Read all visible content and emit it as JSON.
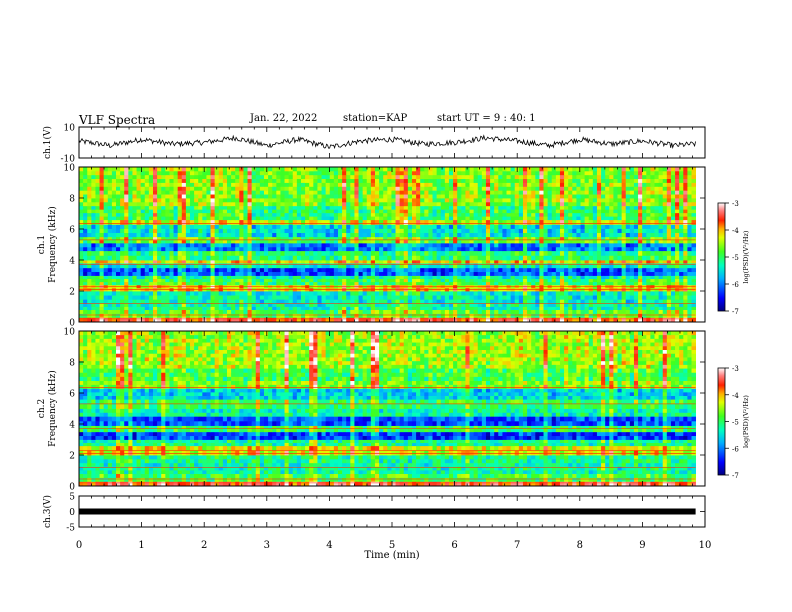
{
  "header": {
    "title": "VLF Spectra",
    "date": "Jan. 22, 2022",
    "station": "station=KAP",
    "start": "start UT =  9 : 40: 1"
  },
  "colors": {
    "spectrum_colormap": [
      "#00007f",
      "#0000ff",
      "#0080ff",
      "#00e0ff",
      "#00ff80",
      "#30ff30",
      "#c8ff00",
      "#ffff00",
      "#ffa000",
      "#ff2000",
      "#ff6060",
      "#ffd0d0",
      "#ffffff"
    ]
  },
  "chart_data": [
    {
      "type": "line",
      "name": "ch1-waveform",
      "ylabel": "ch.1(V)",
      "ylim": [
        -10,
        10
      ],
      "yticks": [
        "10",
        "-10"
      ],
      "xlim": [
        0,
        10
      ],
      "description_of_values": "noisy waveform hovering around 0 V, roughly -5 to +5 V",
      "x": [
        0,
        0.5,
        1,
        1.5,
        2,
        2.5,
        3,
        3.5,
        4,
        4.5,
        5,
        5.5,
        6,
        6.5,
        7,
        7.5,
        8,
        8.5,
        9,
        9.5,
        9.8
      ],
      "y": [
        1,
        -2,
        2,
        -1,
        0,
        3,
        -2,
        2,
        -3,
        1,
        2,
        -1,
        0,
        3,
        1,
        -2,
        2,
        -1,
        1,
        -2,
        -1
      ]
    },
    {
      "type": "heatmap",
      "name": "ch1-spectrogram",
      "ylabel": "ch.1\nFrequency (kHz)",
      "ylim": [
        0,
        10
      ],
      "yticks": [
        "0",
        "2",
        "4",
        "6",
        "8",
        "10"
      ],
      "xlim": [
        0,
        10
      ],
      "colorbar": {
        "label": "log(PSD)(V²/Hz)",
        "range": [
          -7,
          -3
        ],
        "ticks": [
          "-3",
          "-4",
          "-5",
          "-6",
          "-7"
        ]
      },
      "freq_bands_kHz": [
        0,
        0.3,
        0.8,
        1.2,
        2.0,
        2.4,
        2.8,
        3.0,
        3.5,
        3.8,
        4.0,
        4.6,
        5.1,
        5.5,
        6.3,
        6.6,
        7.5,
        10
      ],
      "band_log_psd": [
        -3.6,
        -4.8,
        -5.3,
        -5.4,
        -4.2,
        -5.0,
        -5.3,
        -6.2,
        -5.4,
        -4.2,
        -5.1,
        -6.0,
        -4.8,
        -5.5,
        -4.4,
        -5.0,
        -4.6,
        -4.4
      ]
    },
    {
      "type": "heatmap",
      "name": "ch2-spectrogram",
      "ylabel": "ch.2\nFrequency (kHz)",
      "ylim": [
        0,
        10
      ],
      "yticks": [
        "0",
        "2",
        "4",
        "6",
        "8",
        "10"
      ],
      "xlim": [
        0,
        10
      ],
      "colorbar": {
        "label": "log(PSD)(V²/Hz)",
        "range": [
          -7,
          -3
        ],
        "ticks": [
          "-3",
          "-4",
          "-5",
          "-6",
          "-7"
        ]
      },
      "freq_bands_kHz": [
        0,
        0.3,
        0.8,
        1.5,
        2.0,
        2.6,
        3.0,
        3.5,
        3.9,
        4.5,
        5.0,
        5.6,
        6.3,
        6.8,
        7.6,
        10
      ],
      "band_log_psd": [
        -3.6,
        -4.9,
        -5.3,
        -5.2,
        -4.3,
        -5.2,
        -6.3,
        -5.0,
        -6.2,
        -5.3,
        -5.0,
        -5.6,
        -4.6,
        -4.9,
        -4.5,
        -4.3
      ]
    },
    {
      "type": "line",
      "name": "ch3-waveform",
      "ylabel": "ch.3(V)",
      "ylim": [
        -5,
        5
      ],
      "yticks": [
        "5",
        "0",
        "-5"
      ],
      "xlim": [
        0,
        9.85
      ],
      "x": [
        0,
        9.85
      ],
      "y": [
        0,
        0
      ],
      "xlabel": "Time (min)",
      "xticks": [
        "0",
        "1",
        "2",
        "3",
        "4",
        "5",
        "6",
        "7",
        "8",
        "9",
        "10"
      ]
    }
  ]
}
